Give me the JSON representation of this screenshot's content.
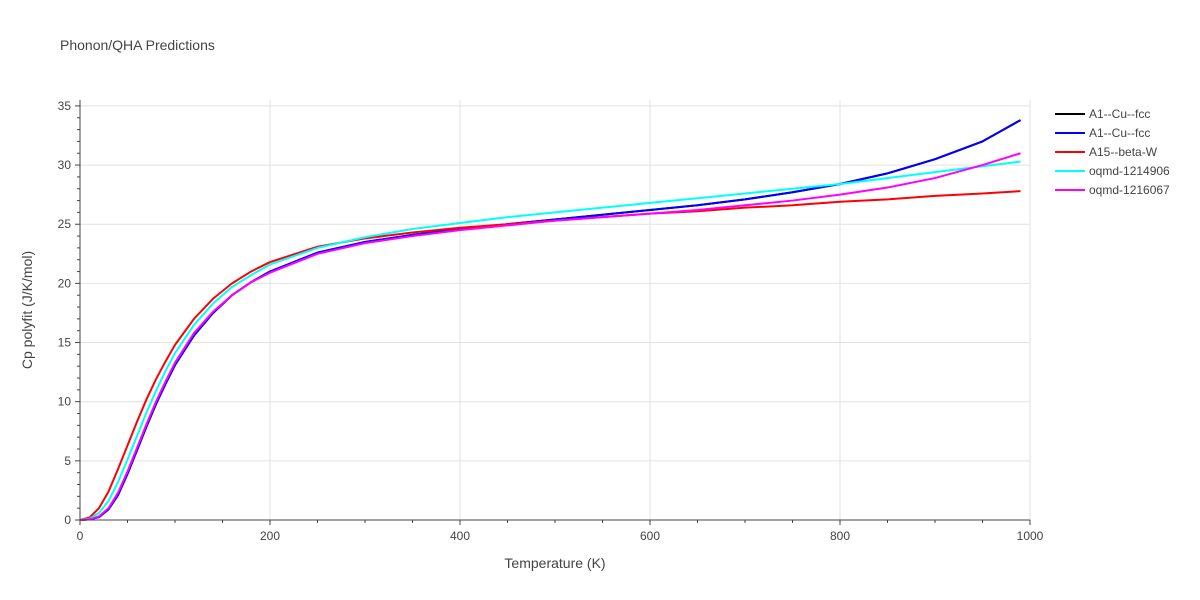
{
  "chart_data": {
    "type": "line",
    "title": "Phonon/QHA Predictions",
    "xlabel": "Temperature (K)",
    "ylabel": "Cp polyfit (J/K/mol)",
    "xlim": [
      0,
      1000
    ],
    "ylim": [
      0,
      35.5
    ],
    "xticks": [
      0,
      200,
      400,
      600,
      800,
      1000
    ],
    "yticks": [
      0,
      5,
      10,
      15,
      20,
      25,
      30,
      35
    ],
    "grid": true,
    "legend_position": "top-right",
    "series": [
      {
        "name": "A1--Cu--fcc",
        "color": "#000000",
        "x": [
          0,
          10,
          20,
          30,
          40,
          50,
          60,
          70,
          80,
          90,
          100,
          120,
          140,
          160,
          180,
          200,
          250,
          300,
          350,
          400,
          450,
          500,
          550,
          600,
          650,
          700,
          750,
          800,
          850,
          900,
          950,
          990
        ],
        "y": [
          0,
          0.05,
          0.25,
          0.9,
          2.1,
          3.9,
          5.9,
          7.9,
          9.8,
          11.5,
          13.1,
          15.6,
          17.5,
          19.0,
          20.1,
          21.0,
          22.6,
          23.5,
          24.1,
          24.6,
          25.0,
          25.4,
          25.8,
          26.2,
          26.6,
          27.1,
          27.7,
          28.4,
          29.3,
          30.5,
          32.0,
          33.8
        ]
      },
      {
        "name": "A1--Cu--fcc",
        "color": "#0000ff",
        "x": [
          0,
          10,
          20,
          30,
          40,
          50,
          60,
          70,
          80,
          90,
          100,
          120,
          140,
          160,
          180,
          200,
          250,
          300,
          350,
          400,
          450,
          500,
          550,
          600,
          650,
          700,
          750,
          800,
          850,
          900,
          950,
          990
        ],
        "y": [
          0,
          0.05,
          0.25,
          0.9,
          2.1,
          3.9,
          5.9,
          7.9,
          9.8,
          11.5,
          13.1,
          15.6,
          17.5,
          19.0,
          20.1,
          21.0,
          22.6,
          23.5,
          24.1,
          24.6,
          25.0,
          25.4,
          25.8,
          26.2,
          26.6,
          27.1,
          27.7,
          28.4,
          29.3,
          30.5,
          32.0,
          33.8
        ]
      },
      {
        "name": "A15--beta-W",
        "color": "#ff0000",
        "x": [
          0,
          10,
          20,
          30,
          40,
          50,
          60,
          70,
          80,
          90,
          100,
          120,
          140,
          160,
          180,
          200,
          250,
          300,
          350,
          400,
          450,
          500,
          550,
          600,
          650,
          700,
          750,
          800,
          850,
          900,
          950,
          990
        ],
        "y": [
          0,
          0.2,
          1.0,
          2.4,
          4.3,
          6.3,
          8.3,
          10.2,
          11.9,
          13.4,
          14.8,
          17.0,
          18.7,
          20.0,
          21.0,
          21.8,
          23.1,
          23.8,
          24.3,
          24.7,
          25.0,
          25.3,
          25.6,
          25.9,
          26.1,
          26.4,
          26.6,
          26.9,
          27.1,
          27.4,
          27.6,
          27.8
        ]
      },
      {
        "name": "oqmd-1214906",
        "color": "#00ffff",
        "x": [
          0,
          10,
          20,
          30,
          40,
          50,
          60,
          70,
          80,
          90,
          100,
          120,
          140,
          160,
          180,
          200,
          250,
          300,
          350,
          400,
          450,
          500,
          550,
          600,
          650,
          700,
          750,
          800,
          850,
          900,
          950,
          990
        ],
        "y": [
          0,
          0.1,
          0.6,
          1.6,
          3.2,
          5.1,
          7.1,
          9.1,
          10.9,
          12.6,
          14.1,
          16.5,
          18.3,
          19.7,
          20.7,
          21.6,
          23.0,
          23.9,
          24.6,
          25.1,
          25.6,
          26.0,
          26.4,
          26.8,
          27.2,
          27.6,
          28.0,
          28.4,
          28.9,
          29.4,
          29.9,
          30.3
        ]
      },
      {
        "name": "oqmd-1216067",
        "color": "#ff00ff",
        "x": [
          0,
          10,
          20,
          30,
          40,
          50,
          60,
          70,
          80,
          90,
          100,
          120,
          140,
          160,
          180,
          200,
          250,
          300,
          350,
          400,
          450,
          500,
          550,
          600,
          650,
          700,
          750,
          800,
          850,
          900,
          950,
          990
        ],
        "y": [
          0,
          0.05,
          0.3,
          1.0,
          2.3,
          4.1,
          6.1,
          8.1,
          10.0,
          11.7,
          13.3,
          15.8,
          17.6,
          19.0,
          20.1,
          20.9,
          22.5,
          23.4,
          24.0,
          24.5,
          24.9,
          25.3,
          25.6,
          25.9,
          26.2,
          26.6,
          27.0,
          27.5,
          28.1,
          28.9,
          30.0,
          31.0
        ]
      }
    ]
  }
}
